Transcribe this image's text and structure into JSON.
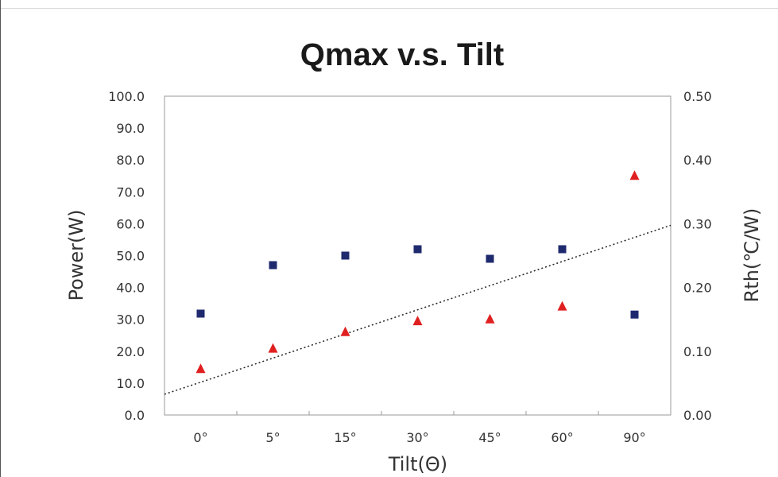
{
  "chart_data": {
    "type": "scatter",
    "title": "Qmax v.s. Tilt",
    "xlabel": "Tilt(Θ)",
    "ylabel": "Power(W)",
    "ylabel_right": "Rth(℃/W)",
    "categories": [
      "0°",
      "5°",
      "15°",
      "30°",
      "45°",
      "60°",
      "90°"
    ],
    "ylim": [
      0,
      100
    ],
    "ylim_right": [
      0,
      0.5
    ],
    "yticks": [
      "0.0",
      "10.0",
      "20.0",
      "30.0",
      "40.0",
      "50.0",
      "60.0",
      "70.0",
      "80.0",
      "90.0",
      "100.0"
    ],
    "yticks_right": [
      "0.00",
      "0.10",
      "0.20",
      "0.30",
      "0.40",
      "0.50"
    ],
    "series": [
      {
        "axis": "left",
        "marker": "square",
        "color": "#1f2a6e",
        "values": [
          31.8,
          47.0,
          50.0,
          52.0,
          49.0,
          52.0,
          31.5
        ]
      },
      {
        "axis": "right",
        "marker": "triangle",
        "color": "#e02020",
        "values": [
          0.072,
          0.104,
          0.13,
          0.147,
          0.15,
          0.17,
          0.375
        ]
      }
    ],
    "trendline": {
      "style": "dotted",
      "color": "#222222",
      "axis": "left",
      "start": 6.5,
      "end": 59.5
    },
    "grid": false
  }
}
